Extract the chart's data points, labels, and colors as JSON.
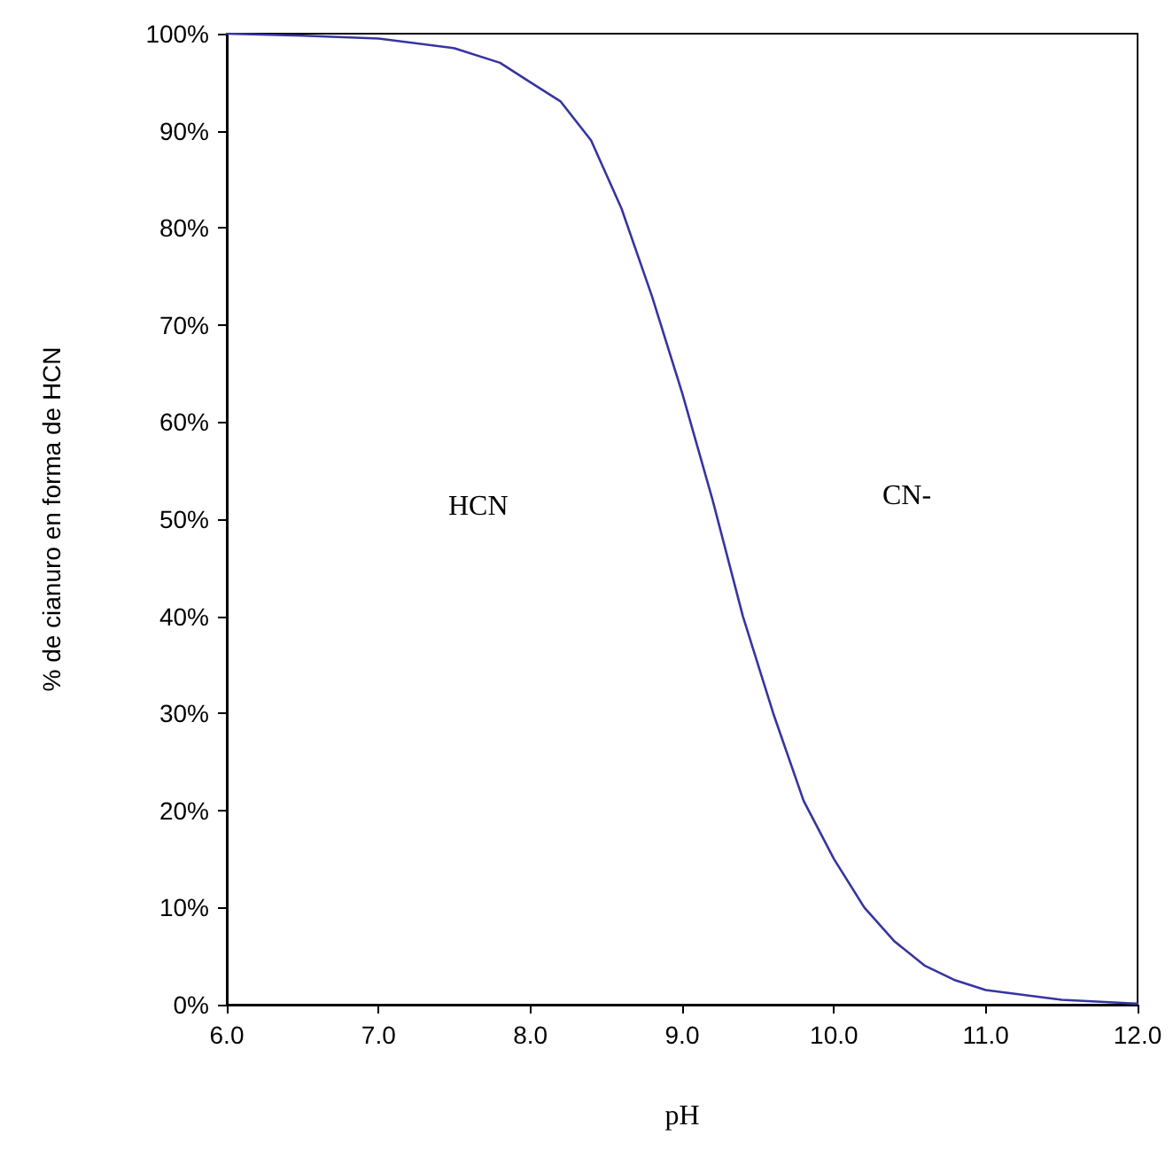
{
  "chart_data": {
    "type": "line",
    "xlabel": "pH",
    "ylabel": "% de cianuro en forma de HCN",
    "x": [
      6.0,
      6.5,
      7.0,
      7.5,
      7.8,
      8.0,
      8.2,
      8.4,
      8.6,
      8.8,
      9.0,
      9.2,
      9.4,
      9.6,
      9.8,
      10.0,
      10.2,
      10.4,
      10.6,
      10.8,
      11.0,
      11.5,
      12.0
    ],
    "series": [
      {
        "color": "#3535a0",
        "values": [
          100,
          99.8,
          99.5,
          98.5,
          97,
          95,
          93,
          89,
          82,
          73,
          63,
          52,
          40,
          30,
          21,
          15,
          10,
          6.5,
          4,
          2.5,
          1.5,
          0.5,
          0.1
        ]
      }
    ],
    "xlim": [
      6,
      12
    ],
    "ylim": [
      0,
      100
    ],
    "xticks": [
      {
        "value": 6,
        "label": "6.0"
      },
      {
        "value": 7,
        "label": "7.0"
      },
      {
        "value": 8,
        "label": "8.0"
      },
      {
        "value": 9,
        "label": "9.0"
      },
      {
        "value": 10,
        "label": "10.0"
      },
      {
        "value": 11,
        "label": "11.0"
      },
      {
        "value": 12,
        "label": "12.0"
      }
    ],
    "yticks": [
      {
        "value": 0,
        "label": "0%"
      },
      {
        "value": 10,
        "label": "10%"
      },
      {
        "value": 20,
        "label": "20%"
      },
      {
        "value": 30,
        "label": "30%"
      },
      {
        "value": 40,
        "label": "40%"
      },
      {
        "value": 50,
        "label": "50%"
      },
      {
        "value": 60,
        "label": "60%"
      },
      {
        "value": 70,
        "label": "70%"
      },
      {
        "value": 80,
        "label": "80%"
      },
      {
        "value": 90,
        "label": "90%"
      },
      {
        "value": 100,
        "label": "100%"
      }
    ],
    "annotations": [
      "HCN",
      "CN-"
    ],
    "grid": false,
    "marker": "none",
    "line_style": "solid"
  }
}
